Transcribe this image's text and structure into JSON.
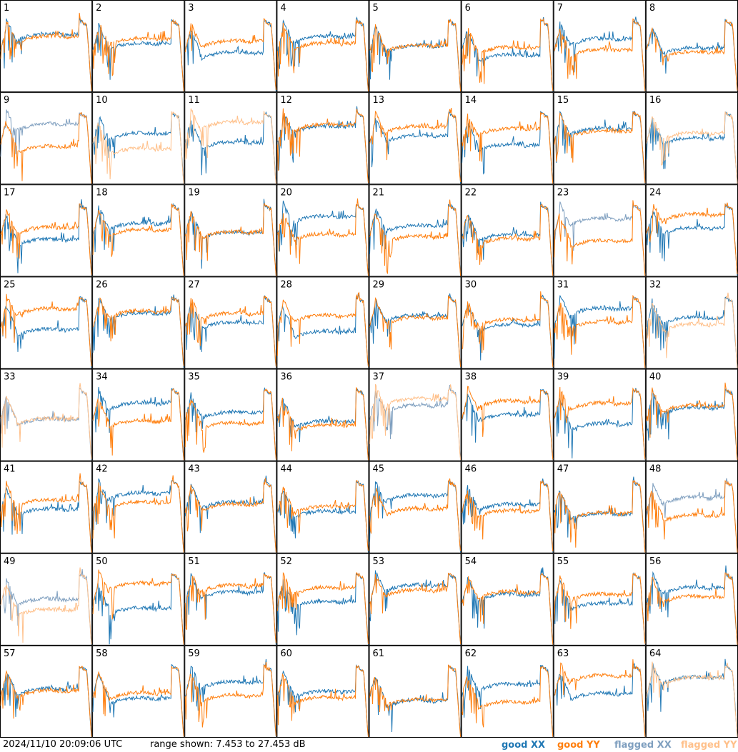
{
  "chart_data": {
    "type": "line",
    "panels": [
      {
        "label": "1",
        "xx": "good",
        "yy": "good"
      },
      {
        "label": "2",
        "xx": "good",
        "yy": "good"
      },
      {
        "label": "3",
        "xx": "good",
        "yy": "good"
      },
      {
        "label": "4",
        "xx": "good",
        "yy": "good"
      },
      {
        "label": "5",
        "xx": "good",
        "yy": "good"
      },
      {
        "label": "6",
        "xx": "good",
        "yy": "good"
      },
      {
        "label": "7",
        "xx": "good",
        "yy": "good"
      },
      {
        "label": "8",
        "xx": "good",
        "yy": "good"
      },
      {
        "label": "9",
        "xx": "flagged",
        "yy": "good"
      },
      {
        "label": "10",
        "xx": "good",
        "yy": "flagged"
      },
      {
        "label": "11",
        "xx": "good",
        "yy": "flagged"
      },
      {
        "label": "12",
        "xx": "good",
        "yy": "good"
      },
      {
        "label": "13",
        "xx": "good",
        "yy": "good"
      },
      {
        "label": "14",
        "xx": "good",
        "yy": "good"
      },
      {
        "label": "15",
        "xx": "good",
        "yy": "good"
      },
      {
        "label": "16",
        "xx": "good",
        "yy": "flagged"
      },
      {
        "label": "17",
        "xx": "good",
        "yy": "good"
      },
      {
        "label": "18",
        "xx": "good",
        "yy": "good"
      },
      {
        "label": "19",
        "xx": "good",
        "yy": "good"
      },
      {
        "label": "20",
        "xx": "good",
        "yy": "good"
      },
      {
        "label": "21",
        "xx": "good",
        "yy": "good"
      },
      {
        "label": "22",
        "xx": "good",
        "yy": "good"
      },
      {
        "label": "23",
        "xx": "flagged",
        "yy": "good"
      },
      {
        "label": "24",
        "xx": "good",
        "yy": "good"
      },
      {
        "label": "25",
        "xx": "good",
        "yy": "good"
      },
      {
        "label": "26",
        "xx": "good",
        "yy": "good"
      },
      {
        "label": "27",
        "xx": "good",
        "yy": "good"
      },
      {
        "label": "28",
        "xx": "good",
        "yy": "good"
      },
      {
        "label": "29",
        "xx": "good",
        "yy": "good"
      },
      {
        "label": "30",
        "xx": "good",
        "yy": "good"
      },
      {
        "label": "31",
        "xx": "good",
        "yy": "good"
      },
      {
        "label": "32",
        "xx": "good",
        "yy": "flagged"
      },
      {
        "label": "33",
        "xx": "flagged",
        "yy": "flagged"
      },
      {
        "label": "34",
        "xx": "good",
        "yy": "good"
      },
      {
        "label": "35",
        "xx": "good",
        "yy": "good"
      },
      {
        "label": "36",
        "xx": "good",
        "yy": "good"
      },
      {
        "label": "37",
        "xx": "flagged",
        "yy": "flagged"
      },
      {
        "label": "38",
        "xx": "good",
        "yy": "good"
      },
      {
        "label": "39",
        "xx": "good",
        "yy": "good"
      },
      {
        "label": "40",
        "xx": "good",
        "yy": "good"
      },
      {
        "label": "41",
        "xx": "good",
        "yy": "good"
      },
      {
        "label": "42",
        "xx": "good",
        "yy": "good"
      },
      {
        "label": "43",
        "xx": "good",
        "yy": "good"
      },
      {
        "label": "44",
        "xx": "good",
        "yy": "good"
      },
      {
        "label": "45",
        "xx": "good",
        "yy": "good"
      },
      {
        "label": "46",
        "xx": "good",
        "yy": "good"
      },
      {
        "label": "47",
        "xx": "good",
        "yy": "good"
      },
      {
        "label": "48",
        "xx": "flagged",
        "yy": "good"
      },
      {
        "label": "49",
        "xx": "flagged",
        "yy": "flagged"
      },
      {
        "label": "50",
        "xx": "good",
        "yy": "good"
      },
      {
        "label": "51",
        "xx": "good",
        "yy": "good"
      },
      {
        "label": "52",
        "xx": "good",
        "yy": "good"
      },
      {
        "label": "53",
        "xx": "good",
        "yy": "good"
      },
      {
        "label": "54",
        "xx": "good",
        "yy": "good"
      },
      {
        "label": "55",
        "xx": "good",
        "yy": "good"
      },
      {
        "label": "56",
        "xx": "good",
        "yy": "good"
      },
      {
        "label": "57",
        "xx": "good",
        "yy": "good"
      },
      {
        "label": "58",
        "xx": "good",
        "yy": "good"
      },
      {
        "label": "59",
        "xx": "good",
        "yy": "good"
      },
      {
        "label": "60",
        "xx": "good",
        "yy": "good"
      },
      {
        "label": "61",
        "xx": "good",
        "yy": "good"
      },
      {
        "label": "62",
        "xx": "good",
        "yy": "good"
      },
      {
        "label": "63",
        "xx": "good",
        "yy": "good"
      },
      {
        "label": "64",
        "xx": "good",
        "yy": "flagged"
      }
    ],
    "ylim_db": [
      7.453,
      27.453
    ],
    "legend": [
      {
        "label": "good XX",
        "color": "#1f77b4"
      },
      {
        "label": "good YY",
        "color": "#ff7f0e"
      },
      {
        "label": "flagged XX",
        "color": "#7f9fbf"
      },
      {
        "label": "flagged YY",
        "color": "#ffc08a"
      }
    ]
  },
  "footer": {
    "timestamp": "2024/11/10 20:09:06 UTC",
    "range_text": "range shown: 7.453 to 27.453 dB"
  }
}
